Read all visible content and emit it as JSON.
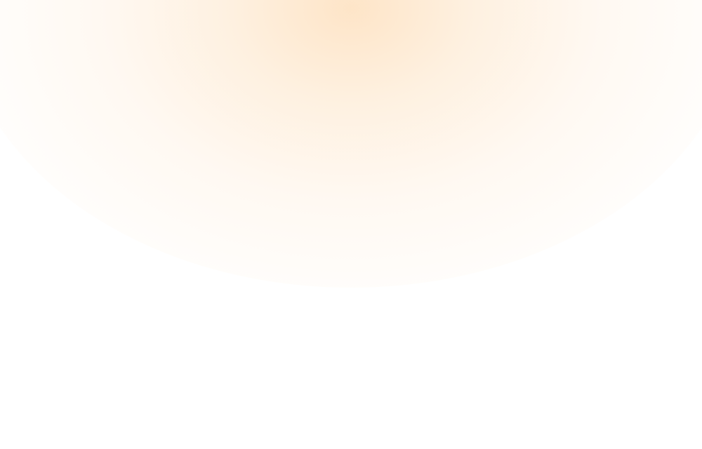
{
  "colors": {
    "background": "#ffffff",
    "glow_center": "#fde0be",
    "glow_edge": "#fff8f0"
  }
}
